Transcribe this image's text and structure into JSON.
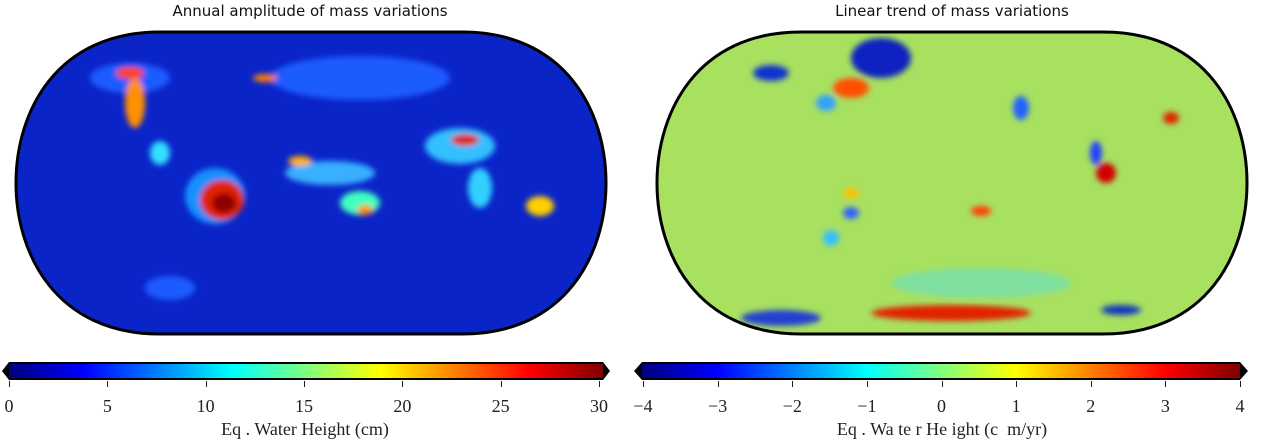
{
  "panels": [
    {
      "title": "Annual amplitude of mass variations",
      "colorbar": {
        "label": "Eq . Water Height (cm)",
        "ticks": [
          "0",
          "5",
          "10",
          "15",
          "20",
          "25",
          "30"
        ],
        "range": [
          0,
          30
        ],
        "colormap": "jet"
      },
      "background_color": "#0a2fd6"
    },
    {
      "title": "Linear trend of mass variations",
      "colorbar": {
        "label": "Eq . Wa te r He ight (c  m/yr)",
        "ticks": [
          "−4",
          "−3",
          "−2",
          "−1",
          "0",
          "1",
          "2",
          "3",
          "4"
        ],
        "range": [
          -4,
          4
        ],
        "colormap": "jet"
      },
      "background_color": "#a8e060"
    }
  ],
  "colors": {
    "jet": [
      "#00007f",
      "#0000ff",
      "#007fff",
      "#00ffff",
      "#7fff7f",
      "#ffff00",
      "#ff7f00",
      "#ff0000",
      "#7f0000"
    ]
  }
}
